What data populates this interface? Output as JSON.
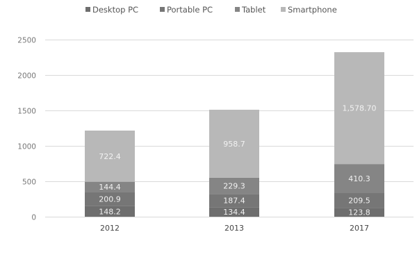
{
  "chart_data": {
    "type": "bar",
    "stacked": true,
    "categories": [
      "2012",
      "2013",
      "2017"
    ],
    "series": [
      {
        "name": "Desktop PC",
        "color": "#6e6e6e",
        "values": [
          148.2,
          134.4,
          123.8
        ],
        "labels": [
          "148.2",
          "134.4",
          "123.8"
        ]
      },
      {
        "name": "Portable PC",
        "color": "#767676",
        "values": [
          200.9,
          187.4,
          209.5
        ],
        "labels": [
          "200.9",
          "187.4",
          "209.5"
        ]
      },
      {
        "name": "Tablet",
        "color": "#858585",
        "values": [
          144.4,
          229.3,
          410.3
        ],
        "labels": [
          "144.4",
          "229.3",
          "410.3"
        ]
      },
      {
        "name": "Smartphone",
        "color": "#b8b8b8",
        "values": [
          722.4,
          958.7,
          1578.7
        ],
        "labels": [
          "722.4",
          "958.7",
          "1,578.70"
        ]
      }
    ],
    "yticks": [
      "0",
      "500",
      "1000",
      "1500",
      "2000",
      "2500"
    ],
    "ylim": [
      0,
      2500
    ],
    "grid": true,
    "legend_position": "top"
  }
}
